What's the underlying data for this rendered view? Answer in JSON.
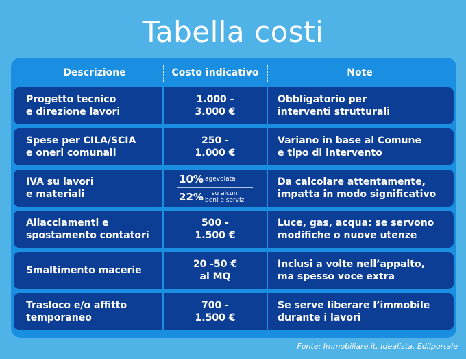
{
  "title": "Tabella costi",
  "colors": {
    "background": "#4fb3e8",
    "panel": "#1a8ee0",
    "cell": "#0d3e96",
    "text": "#ffffff"
  },
  "headers": [
    "Descrizione",
    "Costo indicativo",
    "Note"
  ],
  "rows": [
    {
      "description": "Progetto tecnico\ne direzione lavori",
      "cost": "1.000 -\n3.000 €",
      "note": "Obbligatorio per\n interventi strutturali"
    },
    {
      "description": "Spese per CILA/SCIA\ne oneri comunali",
      "cost": "250 -\n1.000 €",
      "note": "Variano in base al Comune\ne tipo di intervento"
    },
    {
      "description": "IVA su lavori\ne materiali",
      "cost": "",
      "note": "Da calcolare attentamente,\nimpatta in modo significativo"
    },
    {
      "description": "Allacciamenti e\nspostamento contatori",
      "cost": "500 -\n1.500 €",
      "note": "Luce, gas, acqua: se servono\nmodifiche o nuove utenze"
    },
    {
      "description": "Smaltimento macerie",
      "cost": "20 -50 €\nal MQ",
      "note": "Inclusi a volte nell’appalto,\nma spesso voce extra"
    },
    {
      "description": "Trasloco e/o affitto\ntemporaneo",
      "cost": "700 -\n1.500 €",
      "note": "Se serve liberare l’immobile\ndurante i lavori"
    }
  ],
  "iva": {
    "first_pct": "10%",
    "first_label": "agevolata",
    "second_pct": "22%",
    "second_label": "su alcuni\nbeni e servizi"
  },
  "source": "Fonte: Immobiliare.it, Idealista, Edilportale"
}
